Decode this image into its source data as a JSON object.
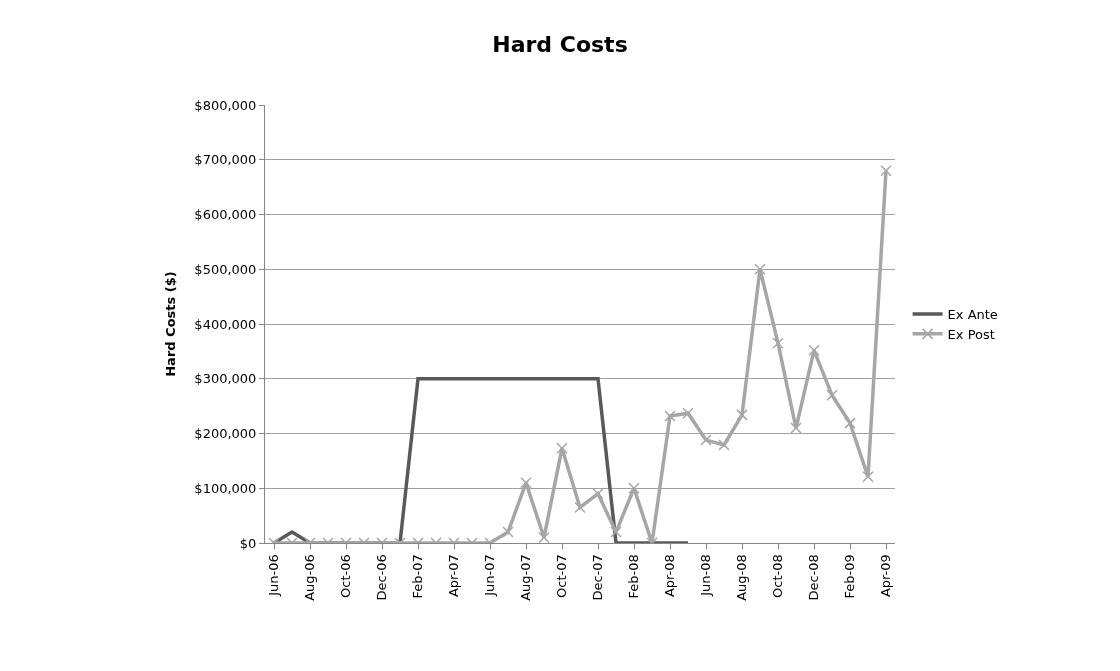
{
  "chart_data": {
    "type": "line",
    "title": "Hard Costs",
    "ylabel": "Hard Costs ($)",
    "categories": [
      "Jun-06",
      null,
      "Aug-06",
      null,
      "Oct-06",
      null,
      "Dec-06",
      null,
      "Feb-07",
      null,
      "Apr-07",
      null,
      "Jun-07",
      null,
      "Aug-07",
      null,
      "Oct-07",
      null,
      "Dec-07",
      null,
      "Feb-08",
      null,
      "Apr-08",
      null,
      "Jun-08",
      null,
      "Aug-08",
      null,
      "Oct-08",
      null,
      "Dec-08",
      null,
      "Feb-09",
      null,
      "Apr-09"
    ],
    "series": [
      {
        "name": "Ex Ante",
        "color": "#595959",
        "marker": "none",
        "values": [
          0,
          20000,
          0,
          0,
          0,
          0,
          0,
          0,
          300000,
          300000,
          300000,
          300000,
          300000,
          300000,
          300000,
          300000,
          300000,
          300000,
          300000,
          0,
          0,
          0,
          0,
          0,
          null,
          null,
          null,
          null,
          null,
          null,
          null,
          null,
          null,
          null,
          null
        ]
      },
      {
        "name": "Ex Post",
        "color": "#a6a6a6",
        "marker": "cross",
        "values": [
          0,
          0,
          0,
          0,
          0,
          0,
          0,
          0,
          0,
          0,
          0,
          0,
          0,
          20000,
          110000,
          10000,
          173000,
          65000,
          90000,
          20000,
          100000,
          0,
          232000,
          237000,
          188000,
          179000,
          234000,
          500000,
          365000,
          210000,
          352000,
          270000,
          219000,
          121000,
          680000
        ]
      }
    ],
    "ylim": [
      0,
      800000
    ],
    "yticks": [
      {
        "value": 0,
        "label": "$0"
      },
      {
        "value": 100000,
        "label": "$100,000"
      },
      {
        "value": 200000,
        "label": "$200,000"
      },
      {
        "value": 300000,
        "label": "$300,000"
      },
      {
        "value": 400000,
        "label": "$400,000"
      },
      {
        "value": 500000,
        "label": "$500,000"
      },
      {
        "value": 600000,
        "label": "$600,000"
      },
      {
        "value": 700000,
        "label": "$700,000"
      },
      {
        "value": 800000,
        "label": "$800,000"
      }
    ],
    "grid": "y",
    "legend": "right",
    "line_style": "solid"
  }
}
